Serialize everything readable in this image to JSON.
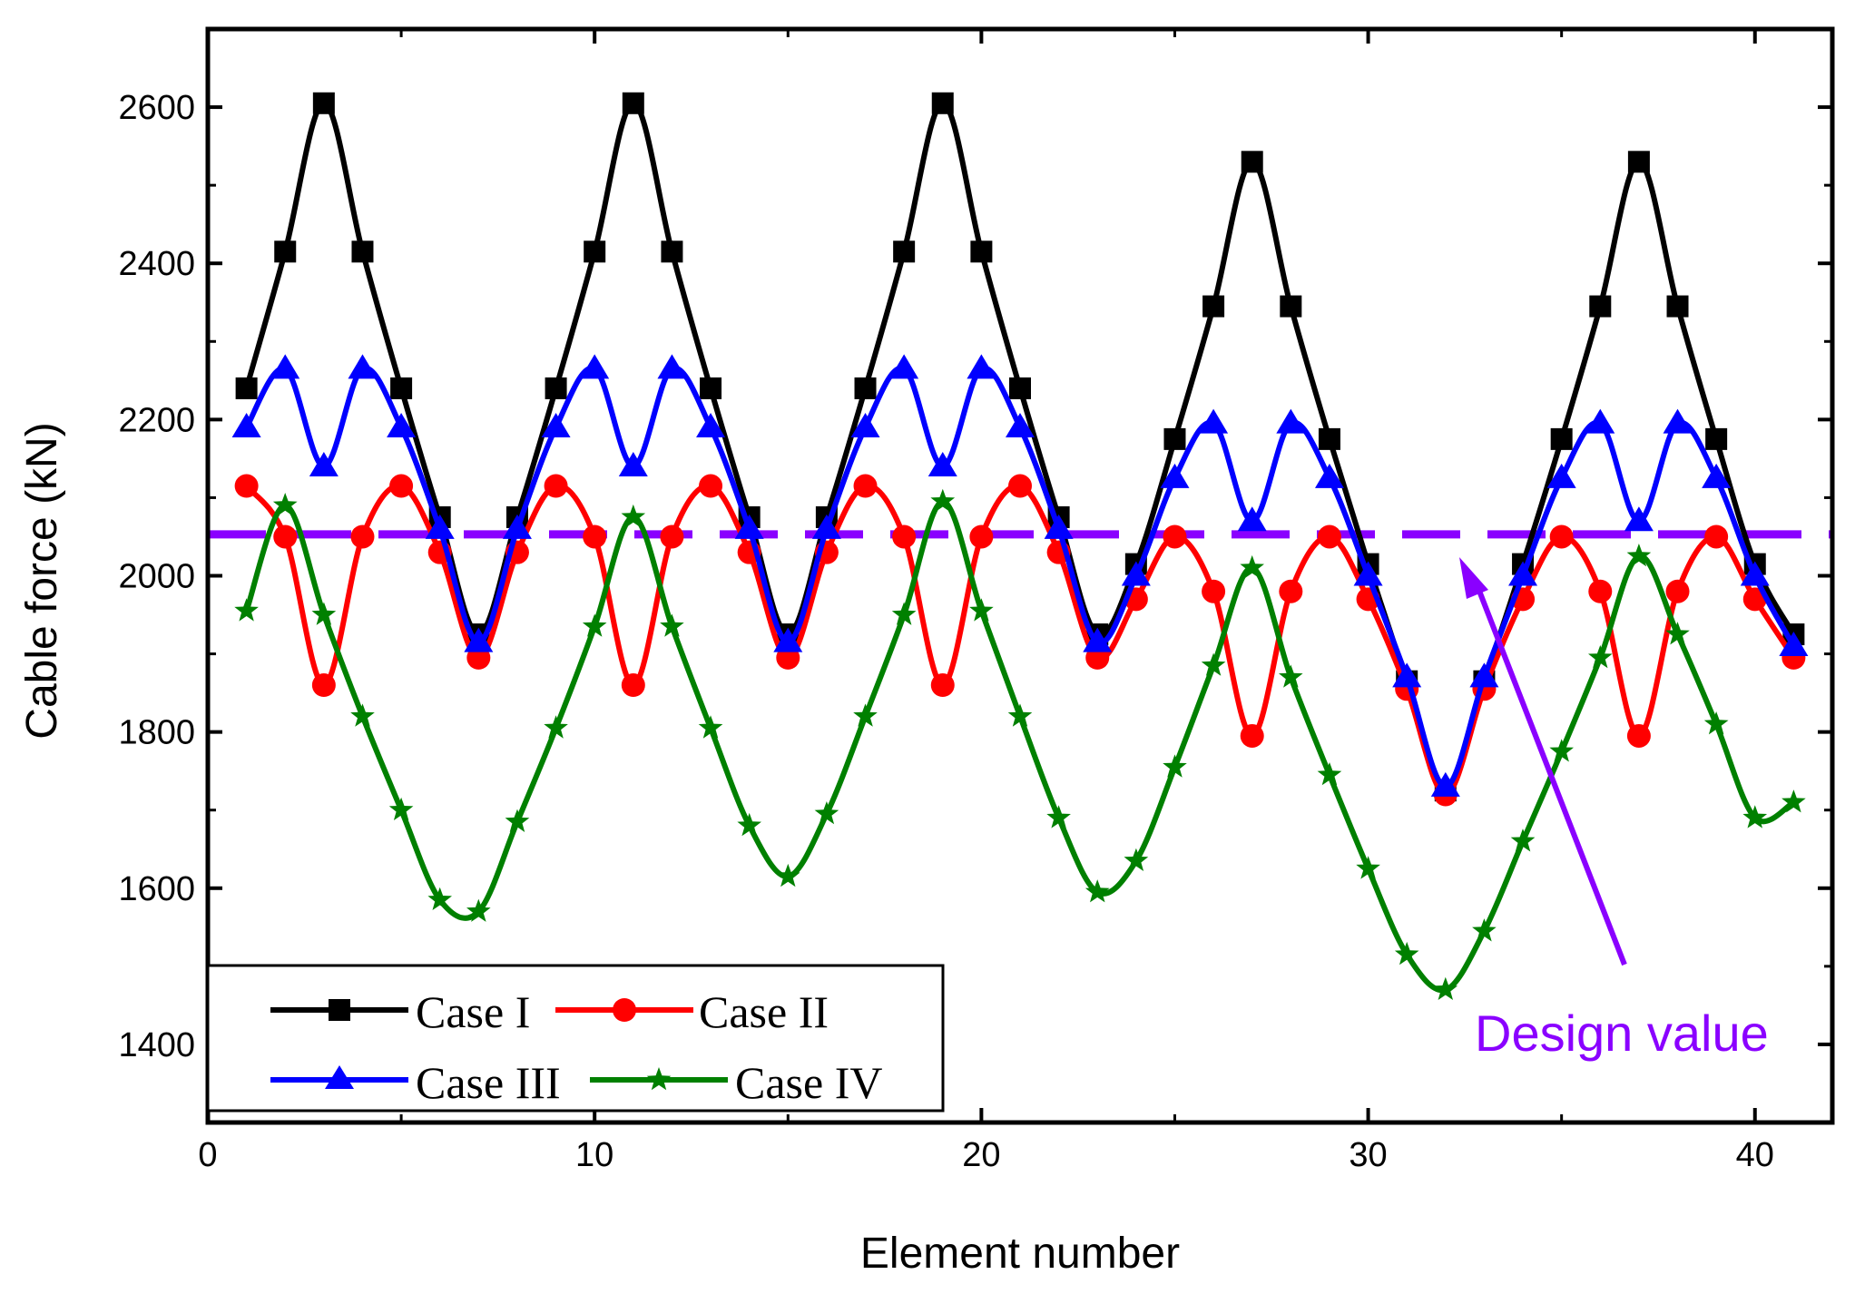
{
  "chart_data": {
    "type": "line",
    "title": "",
    "xlabel": "Element number",
    "ylabel": "Cable force (kN)",
    "xlim": [
      0,
      42
    ],
    "ylim": [
      1300,
      2700
    ],
    "xticks": [
      0,
      10,
      20,
      30,
      40
    ],
    "yticks": [
      1400,
      1600,
      1800,
      2000,
      2200,
      2400,
      2600
    ],
    "grid": false,
    "legend_position": "bottom-left",
    "x": [
      1,
      2,
      3,
      4,
      5,
      6,
      7,
      8,
      9,
      10,
      11,
      12,
      13,
      14,
      15,
      16,
      17,
      18,
      19,
      20,
      21,
      22,
      23,
      24,
      25,
      26,
      27,
      28,
      29,
      30,
      31,
      32,
      33,
      34,
      35,
      36,
      37,
      38,
      39,
      40,
      41
    ],
    "series": [
      {
        "name": "Case I",
        "color": "#000000",
        "marker": "square",
        "values": [
          2240,
          2415,
          2605,
          2415,
          2240,
          2075,
          1925,
          2075,
          2240,
          2415,
          2605,
          2415,
          2240,
          2075,
          1925,
          2075,
          2240,
          2415,
          2605,
          2415,
          2240,
          2075,
          1925,
          2015,
          2175,
          2345,
          2530,
          2345,
          2175,
          2015,
          1865,
          1725,
          1865,
          2015,
          2175,
          2345,
          2530,
          2345,
          2175,
          2015,
          1925
        ]
      },
      {
        "name": "Case II",
        "color": "#ff0000",
        "marker": "circle",
        "values": [
          2115,
          2050,
          1860,
          2050,
          2115,
          2030,
          1895,
          2030,
          2115,
          2050,
          1860,
          2050,
          2115,
          2030,
          1895,
          2030,
          2115,
          2050,
          1860,
          2050,
          2115,
          2030,
          1895,
          1970,
          2050,
          1980,
          1795,
          1980,
          2050,
          1970,
          1855,
          1720,
          1855,
          1970,
          2050,
          1980,
          1795,
          1980,
          2050,
          1970,
          1895
        ]
      },
      {
        "name": "Case III",
        "color": "#0000ff",
        "marker": "triangle",
        "values": [
          2190,
          2265,
          2140,
          2265,
          2190,
          2060,
          1915,
          2060,
          2190,
          2265,
          2140,
          2265,
          2190,
          2060,
          1915,
          2060,
          2190,
          2265,
          2140,
          2265,
          2190,
          2060,
          1915,
          2000,
          2125,
          2195,
          2070,
          2195,
          2125,
          2000,
          1870,
          1730,
          1870,
          2000,
          2125,
          2195,
          2070,
          2195,
          2125,
          2000,
          1910
        ]
      },
      {
        "name": "Case IV",
        "color": "#008000",
        "marker": "star",
        "values": [
          1955,
          2090,
          1950,
          1820,
          1700,
          1585,
          1570,
          1685,
          1805,
          1935,
          2075,
          1935,
          1805,
          1680,
          1615,
          1695,
          1820,
          1950,
          2095,
          1955,
          1820,
          1690,
          1595,
          1635,
          1755,
          1885,
          2010,
          1870,
          1745,
          1625,
          1515,
          1470,
          1545,
          1660,
          1775,
          1895,
          2025,
          1925,
          1810,
          1690,
          1710
        ]
      }
    ],
    "design_value": {
      "label": "Design value",
      "value": 2053,
      "color": "#8a00ff",
      "style": "dashed"
    }
  }
}
